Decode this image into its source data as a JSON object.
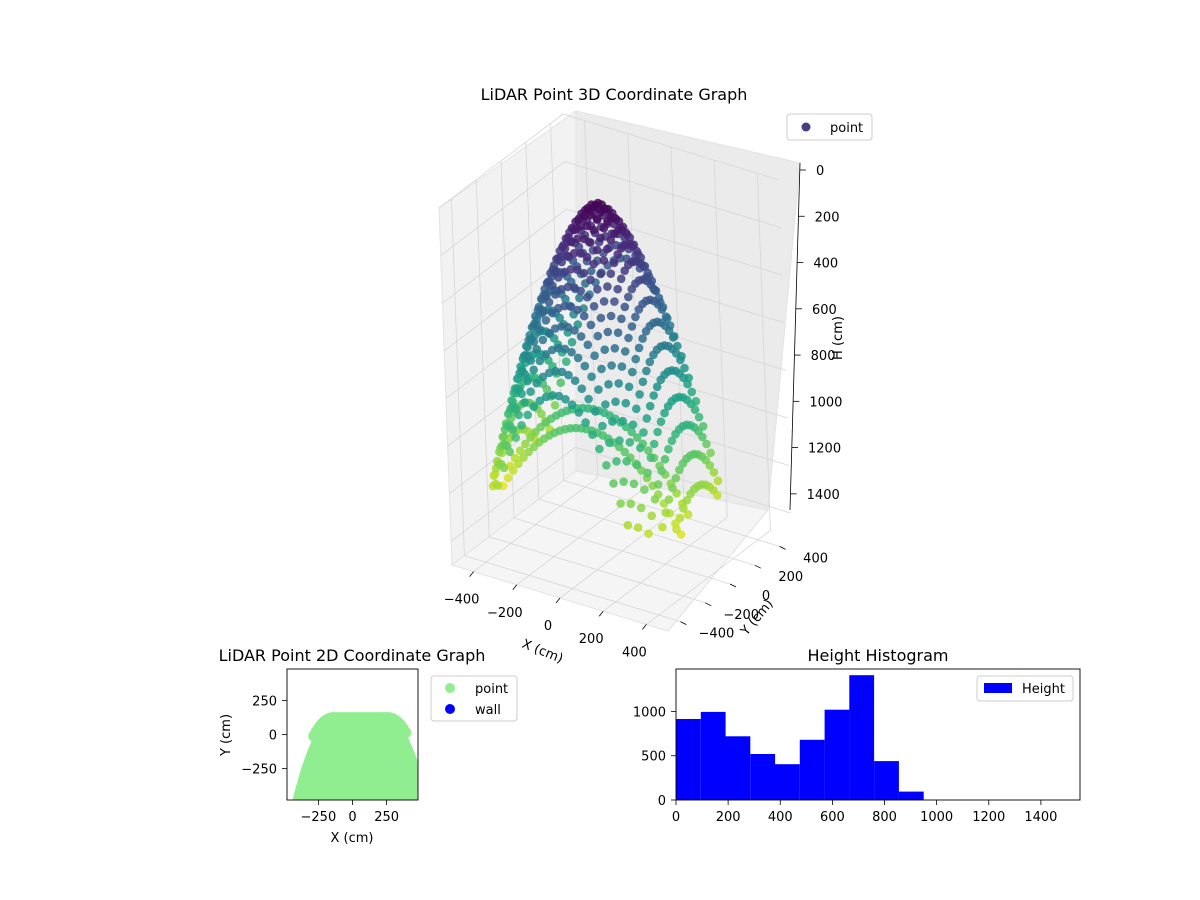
{
  "chart_data": [
    {
      "type": "scatter3d",
      "title": "LiDAR Point 3D Coordinate Graph",
      "xlabel": "X (cm)",
      "ylabel": "Y (cm)",
      "zlabel": "H (cm)",
      "xlim": [
        -500,
        500
      ],
      "ylim": [
        -500,
        500
      ],
      "zlim": [
        0,
        1500
      ],
      "z_inverted": true,
      "x_ticks": [
        -400,
        -200,
        0,
        200,
        400
      ],
      "y_ticks": [
        -400,
        -200,
        0,
        200,
        400
      ],
      "z_ticks": [
        0,
        200,
        400,
        600,
        800,
        1000,
        1200,
        1400
      ],
      "colormap": "viridis",
      "legend": {
        "placement": "top-right",
        "entries": [
          {
            "label": "point",
            "color": "#433e85"
          }
        ]
      },
      "surface": {
        "description_of_shape": "dome",
        "outer_radius": 450,
        "peak_height": 0,
        "edge_height": 1200,
        "inner_radius": 250,
        "inner_peak_height": 850
      }
    },
    {
      "type": "scatter",
      "title": "LiDAR Point 2D Coordinate Graph",
      "xlabel": "X (cm)",
      "ylabel": "Y (cm)",
      "xlim": [
        -480,
        480
      ],
      "ylim": [
        -480,
        480
      ],
      "x_ticks": [
        -250,
        0,
        250
      ],
      "y_ticks": [
        -250,
        0,
        250
      ],
      "legend": {
        "placement": "outside-right",
        "entries": [
          {
            "label": "point",
            "color": "#90ee90"
          },
          {
            "label": "wall",
            "color": "#0000ff"
          }
        ]
      },
      "region": {
        "color": "#90ee90",
        "top_y": 120,
        "x_range": [
          -480,
          480
        ]
      }
    },
    {
      "type": "bar",
      "title": "Height Histogram",
      "xlabel": "",
      "ylabel": "",
      "xlim": [
        0,
        1550
      ],
      "ylim": [
        0,
        1480
      ],
      "x_ticks": [
        0,
        200,
        400,
        600,
        800,
        1000,
        1200,
        1400
      ],
      "y_ticks": [
        0,
        500,
        1000
      ],
      "bin_width": 95,
      "bin_edges": [
        0,
        95,
        190,
        285,
        380,
        475,
        570,
        665,
        760,
        855,
        950
      ],
      "values": [
        915,
        995,
        720,
        520,
        405,
        680,
        1020,
        1410,
        440,
        95
      ],
      "color": "#0000ff",
      "legend": {
        "placement": "top-right",
        "entries": [
          {
            "label": "Height",
            "color": "#0000ff"
          }
        ]
      }
    }
  ]
}
